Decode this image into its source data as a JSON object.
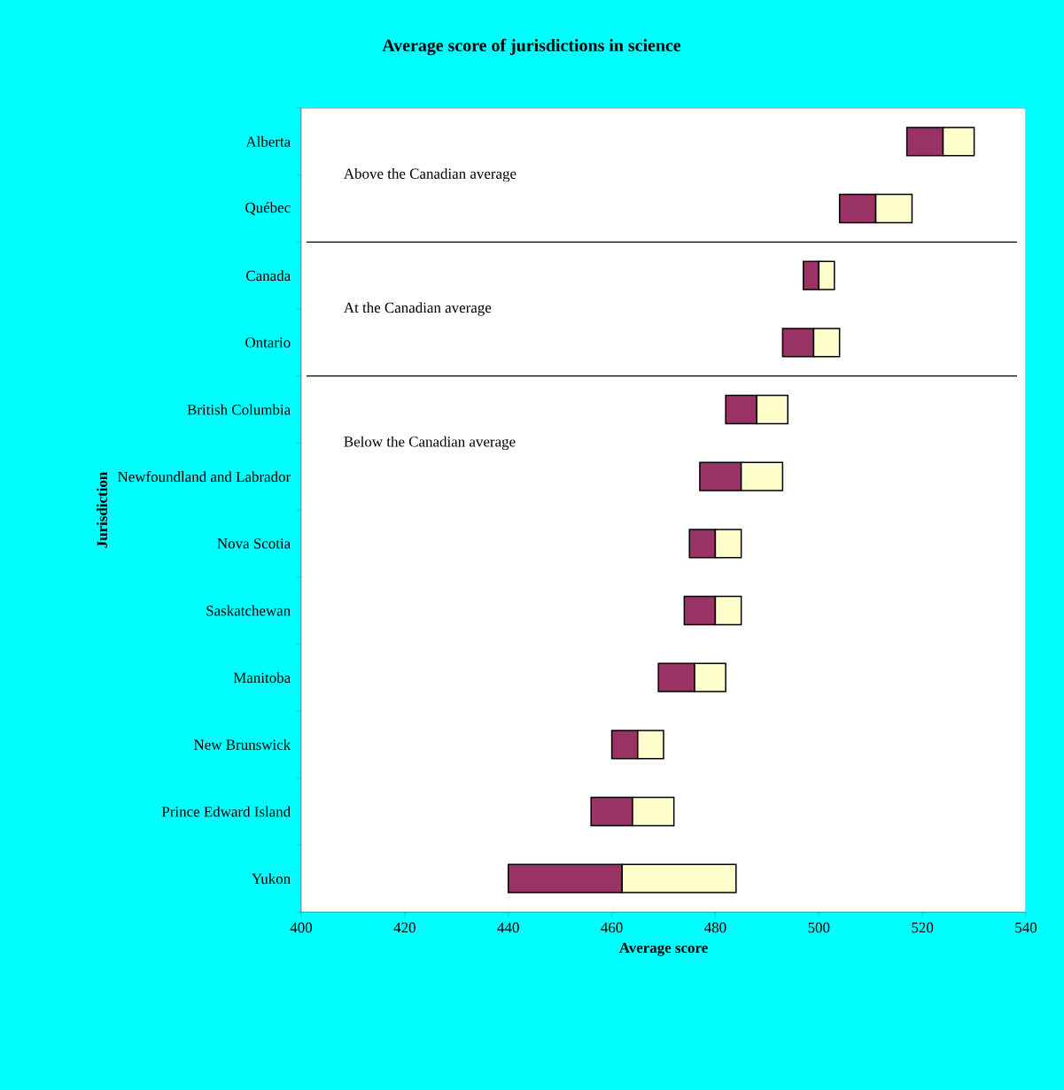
{
  "chart_data": {
    "type": "bar",
    "orientation": "horizontal",
    "title": "Average score of jurisdictions in science",
    "xlabel": "Average score",
    "ylabel": "Jurisdiction",
    "categories": [
      "Alberta",
      "Québec",
      "Canada",
      "Ontario",
      "British Columbia",
      "Newfoundland and Labrador",
      "Nova Scotia",
      "Saskatchewan",
      "Manitoba",
      "New Brunswick",
      "Prince Edward Island",
      "Yukon"
    ],
    "series": [
      {
        "color": "#993366",
        "base": [
          517,
          504,
          497,
          493,
          482,
          477,
          475,
          474,
          469,
          460,
          456,
          440
        ],
        "values": [
          7,
          7,
          3,
          6,
          6,
          8,
          5,
          6,
          7,
          5,
          8,
          22
        ]
      },
      {
        "color": "#ffffcc",
        "base": [
          524,
          511,
          500,
          499,
          488,
          485,
          480,
          480,
          476,
          465,
          464,
          462
        ],
        "values": [
          6,
          7,
          3,
          5,
          6,
          8,
          5,
          5,
          6,
          5,
          8,
          22
        ]
      }
    ],
    "xlim": [
      400,
      540
    ],
    "xticks": [
      400,
      420,
      440,
      460,
      480,
      500,
      520,
      540
    ],
    "annotations": [
      "Above the Canadian average",
      "At the Canadian average",
      "Below the Canadian average"
    ],
    "grid": false
  }
}
